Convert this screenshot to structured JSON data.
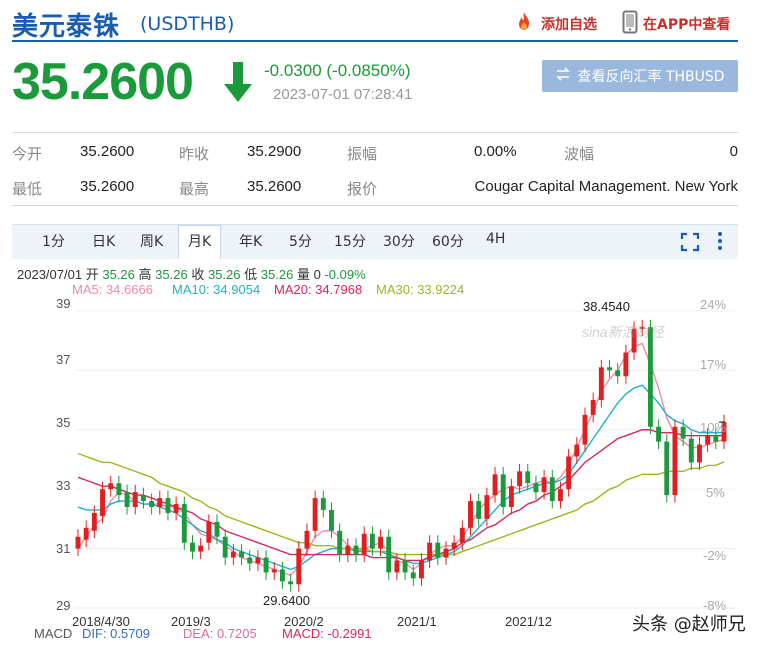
{
  "header": {
    "title": "美元泰铢",
    "symbol": "(USDTHB)",
    "add_favorite": "添加自选",
    "view_in_app": "在APP中查看"
  },
  "quote": {
    "price": "35.2600",
    "change": "-0.0300 (-0.0850%)",
    "timestamp": "2023-07-01 07:28:41",
    "direction": "down",
    "reverse_button": "查看反向汇率 THBUSD"
  },
  "stats": {
    "open_label": "今开",
    "open_value": "35.2600",
    "prev_close_label": "昨收",
    "prev_close_value": "35.2900",
    "amplitude_label": "振幅",
    "amplitude_value": "0.00%",
    "wave_label": "波幅",
    "wave_value": "0",
    "low_label": "最低",
    "low_value": "35.2600",
    "high_label": "最高",
    "high_value": "35.2600",
    "quote_label": "报价",
    "quote_value": "Cougar Capital Management. New York"
  },
  "tabs": [
    {
      "label": "1分"
    },
    {
      "label": "日K"
    },
    {
      "label": "周K"
    },
    {
      "label": "月K",
      "active": true
    },
    {
      "label": "年K"
    },
    {
      "label": "5分"
    },
    {
      "label": "15分"
    },
    {
      "label": "30分"
    },
    {
      "label": "60分"
    },
    {
      "label": "4H"
    }
  ],
  "ohlc": {
    "date": "2023/07/01",
    "open_label": "开",
    "open": "35.26",
    "high_label": "高",
    "high": "35.26",
    "close_label": "收",
    "close": "35.26",
    "low_label": "低",
    "low": "35.26",
    "vol_label": "量",
    "vol": "0",
    "pct": "-0.09%"
  },
  "ma": {
    "ma5": "MA5: 34.6666",
    "ma10": "MA10: 34.9054",
    "ma20": "MA20: 34.7968",
    "ma30": "MA30: 33.9224"
  },
  "macd": {
    "label": "MACD",
    "dif": "DIF: 0.5709",
    "dea": "DEA: 0.7205",
    "macd": "MACD: -0.2991"
  },
  "chart_data": {
    "type": "candlestick",
    "y_ticks": [
      "39",
      "37",
      "35",
      "33",
      "31",
      "29"
    ],
    "right_ticks": [
      "24%",
      "17%",
      "10%",
      "5%",
      "-2%",
      "-8%"
    ],
    "x_ticks": [
      "2018/4/30",
      "2019/3",
      "2020/2",
      "2021/1",
      "2021/12"
    ],
    "ylim": [
      28.8,
      39.5
    ],
    "annotations": {
      "high": "38.4540",
      "low": "29.6400"
    },
    "candles": [
      [
        31.0,
        31.4
      ],
      [
        31.3,
        31.7
      ],
      [
        31.6,
        32.2
      ],
      [
        32.1,
        33.0
      ],
      [
        33.0,
        33.2
      ],
      [
        33.2,
        32.8
      ],
      [
        32.9,
        32.4
      ],
      [
        32.4,
        32.9
      ],
      [
        32.8,
        32.6
      ],
      [
        32.6,
        32.4
      ],
      [
        32.4,
        32.7
      ],
      [
        32.7,
        32.2
      ],
      [
        32.2,
        32.5
      ],
      [
        32.5,
        31.2
      ],
      [
        31.2,
        30.9
      ],
      [
        30.9,
        31.1
      ],
      [
        31.2,
        31.9
      ],
      [
        31.9,
        31.4
      ],
      [
        31.4,
        30.7
      ],
      [
        30.7,
        30.9
      ],
      [
        30.9,
        30.7
      ],
      [
        30.7,
        30.5
      ],
      [
        30.5,
        30.7
      ],
      [
        30.7,
        30.2
      ],
      [
        30.2,
        30.3
      ],
      [
        30.3,
        29.9
      ],
      [
        29.9,
        29.8
      ],
      [
        29.8,
        31.0
      ],
      [
        31.0,
        31.6
      ],
      [
        31.6,
        32.7
      ],
      [
        32.7,
        32.3
      ],
      [
        32.3,
        31.6
      ],
      [
        31.6,
        30.8
      ],
      [
        30.8,
        31.1
      ],
      [
        31.1,
        30.8
      ],
      [
        30.8,
        31.5
      ],
      [
        31.5,
        31.0
      ],
      [
        31.0,
        31.4
      ],
      [
        31.4,
        30.2
      ],
      [
        30.2,
        30.6
      ],
      [
        30.6,
        30.2
      ],
      [
        30.2,
        30.0
      ],
      [
        30.0,
        30.6
      ],
      [
        30.6,
        31.2
      ],
      [
        31.2,
        30.7
      ],
      [
        30.7,
        31.0
      ],
      [
        31.0,
        31.2
      ],
      [
        31.2,
        31.7
      ],
      [
        31.7,
        32.6
      ],
      [
        32.6,
        32.0
      ],
      [
        32.0,
        32.8
      ],
      [
        32.8,
        33.5
      ],
      [
        33.5,
        32.4
      ],
      [
        32.4,
        33.1
      ],
      [
        33.1,
        33.6
      ],
      [
        33.6,
        33.2
      ],
      [
        33.2,
        32.9
      ],
      [
        32.9,
        33.4
      ],
      [
        33.4,
        32.6
      ],
      [
        32.6,
        33.0
      ],
      [
        33.0,
        34.1
      ],
      [
        34.1,
        34.5
      ],
      [
        34.5,
        35.5
      ],
      [
        35.5,
        36.0
      ],
      [
        36.0,
        37.1
      ],
      [
        37.1,
        37.0
      ],
      [
        37.0,
        36.8
      ],
      [
        36.8,
        37.6
      ],
      [
        37.6,
        38.4
      ],
      [
        38.4,
        38.45
      ],
      [
        38.45,
        35.1
      ],
      [
        35.1,
        34.6
      ],
      [
        34.6,
        32.8
      ],
      [
        32.8,
        35.1
      ],
      [
        35.1,
        34.7
      ],
      [
        34.7,
        33.9
      ],
      [
        33.9,
        34.5
      ],
      [
        34.5,
        34.8
      ],
      [
        34.8,
        34.6
      ],
      [
        34.6,
        35.26
      ]
    ],
    "ma_series": [
      {
        "name": "MA5",
        "color": "#f08aa8",
        "values": [
          31.0,
          31.4,
          31.8,
          32.0,
          32.6,
          32.9,
          32.8,
          32.6,
          32.5,
          32.5,
          32.5,
          32.4,
          32.4,
          32.2,
          31.8,
          31.5,
          31.4,
          31.3,
          31.1,
          30.9,
          30.7,
          30.6,
          30.5,
          30.4,
          30.3,
          30.2,
          30.1,
          30.4,
          30.9,
          31.4,
          31.6,
          31.6,
          31.4,
          31.1,
          30.9,
          31.0,
          31.1,
          31.2,
          30.9,
          30.6,
          30.5,
          30.3,
          30.5,
          30.8,
          31.0,
          31.1,
          31.1,
          31.4,
          31.8,
          32.3,
          32.6,
          32.8,
          33.0,
          33.1,
          33.0,
          33.1,
          33.2,
          33.3,
          33.2,
          33.4,
          33.8,
          34.4,
          35.0,
          35.6,
          36.3,
          36.7,
          37.0,
          37.5,
          37.8,
          37.9,
          37.2,
          36.4,
          35.4,
          34.8,
          34.6,
          34.4,
          34.4,
          34.5,
          34.6,
          34.67
        ]
      },
      {
        "name": "MA10",
        "color": "#20b0d0",
        "values": [
          32.4,
          32.3,
          32.3,
          32.3,
          32.5,
          32.6,
          32.6,
          32.6,
          32.5,
          32.5,
          32.4,
          32.3,
          32.2,
          32.0,
          31.8,
          31.6,
          31.5,
          31.3,
          31.2,
          31.0,
          30.9,
          30.8,
          30.7,
          30.6,
          30.5,
          30.4,
          30.3,
          30.4,
          30.6,
          30.8,
          30.9,
          31.0,
          31.0,
          31.0,
          30.9,
          30.9,
          30.9,
          30.9,
          30.8,
          30.7,
          30.6,
          30.5,
          30.5,
          30.6,
          30.7,
          30.8,
          30.9,
          31.1,
          31.4,
          31.7,
          32.0,
          32.3,
          32.6,
          32.8,
          32.9,
          33.0,
          33.1,
          33.2,
          33.2,
          33.3,
          33.5,
          33.9,
          34.3,
          34.7,
          35.1,
          35.5,
          35.9,
          36.2,
          36.4,
          36.5,
          36.2,
          35.9,
          35.5,
          35.3,
          35.2,
          35.0,
          34.9,
          34.9,
          34.9,
          34.91
        ]
      },
      {
        "name": "MA20",
        "color": "#d42a5a",
        "values": [
          33.4,
          33.3,
          33.2,
          33.1,
          33.1,
          33.0,
          32.9,
          32.8,
          32.8,
          32.7,
          32.6,
          32.5,
          32.4,
          32.3,
          32.2,
          32.0,
          31.9,
          31.8,
          31.6,
          31.5,
          31.4,
          31.3,
          31.2,
          31.1,
          31.0,
          30.9,
          30.8,
          30.8,
          30.8,
          30.8,
          30.8,
          30.8,
          30.8,
          30.8,
          30.8,
          30.8,
          30.7,
          30.7,
          30.7,
          30.7,
          30.6,
          30.6,
          30.6,
          30.7,
          30.8,
          30.9,
          31.0,
          31.2,
          31.3,
          31.5,
          31.7,
          31.8,
          32.0,
          32.2,
          32.3,
          32.5,
          32.6,
          32.8,
          32.9,
          33.1,
          33.3,
          33.6,
          33.9,
          34.1,
          34.3,
          34.5,
          34.7,
          34.8,
          34.9,
          35.0,
          35.0,
          34.9,
          34.9,
          34.9,
          34.8,
          34.8,
          34.8,
          34.8,
          34.8,
          34.8
        ]
      },
      {
        "name": "MA30",
        "color": "#9ab820",
        "values": [
          34.2,
          34.1,
          34.0,
          33.9,
          33.9,
          33.8,
          33.7,
          33.6,
          33.5,
          33.4,
          33.2,
          33.1,
          33.0,
          32.9,
          32.7,
          32.6,
          32.4,
          32.3,
          32.1,
          32.0,
          31.9,
          31.8,
          31.7,
          31.6,
          31.5,
          31.4,
          31.3,
          31.2,
          31.2,
          31.1,
          31.1,
          31.1,
          31.0,
          31.0,
          31.0,
          31.0,
          30.9,
          30.9,
          30.9,
          30.8,
          30.8,
          30.8,
          30.8,
          30.8,
          30.8,
          30.8,
          30.8,
          30.9,
          31.0,
          31.1,
          31.2,
          31.3,
          31.4,
          31.5,
          31.6,
          31.7,
          31.8,
          31.9,
          32.0,
          32.1,
          32.2,
          32.3,
          32.5,
          32.6,
          32.8,
          33.0,
          33.1,
          33.3,
          33.4,
          33.5,
          33.5,
          33.5,
          33.6,
          33.6,
          33.6,
          33.7,
          33.7,
          33.8,
          33.8,
          33.92
        ]
      }
    ]
  },
  "watermark": "头条 @赵师兄",
  "logo_text": "sina新浪财经",
  "colors": {
    "up": "#e02020",
    "down": "#1a9a3a",
    "accent": "#1a5cb0",
    "title": "#1a5cb0"
  }
}
